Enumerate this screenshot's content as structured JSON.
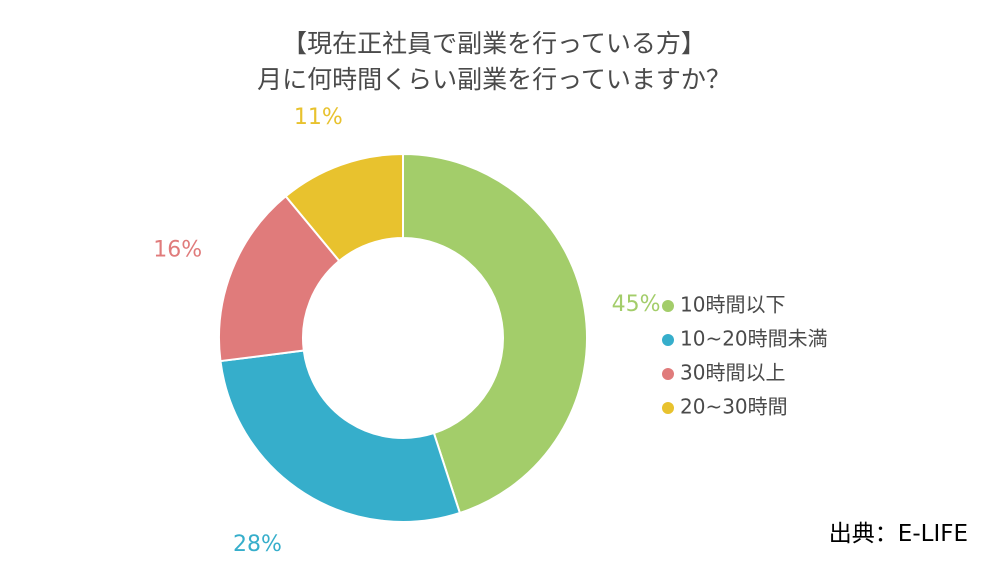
{
  "title_lines": [
    "【現在正社員で副業を行っている方】",
    "月に何時間くらい副業を行っていますか？"
  ],
  "source": "出典：E-LIFE",
  "chart_data": {
    "type": "pie",
    "donut": true,
    "categories": [
      "10時間以下",
      "10~20時間未満",
      "30時間以上",
      "20~30時間"
    ],
    "values": [
      45,
      28,
      16,
      11
    ],
    "value_labels": [
      "45%",
      "28%",
      "16%",
      "11%"
    ],
    "colors": [
      "#a3cd6a",
      "#36aecb",
      "#e07b7b",
      "#e8c22e"
    ],
    "legend_position": "right"
  }
}
